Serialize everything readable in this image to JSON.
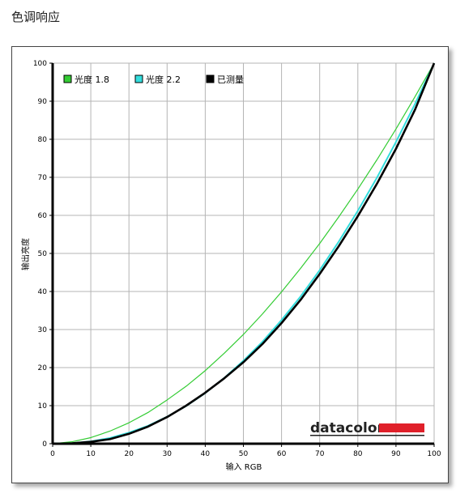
{
  "page": {
    "heading": "色调响应"
  },
  "chart_data": {
    "type": "line",
    "title": "",
    "xlabel": "输入 RGB",
    "ylabel": "输出亮度",
    "xlim": [
      0,
      100
    ],
    "ylim": [
      0,
      100
    ],
    "xticks": [
      "0",
      "10",
      "20",
      "30",
      "40",
      "50",
      "60",
      "70",
      "80",
      "90",
      "100"
    ],
    "yticks": [
      "0",
      "10",
      "20",
      "30",
      "40",
      "50",
      "60",
      "70",
      "80",
      "90",
      "100"
    ],
    "grid": true,
    "legend_position": "top-left",
    "x": [
      0,
      5,
      10,
      15,
      20,
      25,
      30,
      35,
      40,
      45,
      50,
      55,
      60,
      65,
      70,
      75,
      80,
      85,
      90,
      95,
      100
    ],
    "series": [
      {
        "name": "光度 1.8",
        "color": "#33cc33",
        "values": [
          0,
          0.5,
          1.6,
          3.3,
          5.5,
          8.2,
          11.5,
          15.1,
          19.2,
          23.8,
          28.7,
          34.1,
          39.9,
          46.1,
          52.6,
          59.6,
          66.9,
          74.6,
          82.7,
          91.2,
          100
        ]
      },
      {
        "name": "光度 2.2",
        "color": "#33dddd",
        "values": [
          0,
          0.1,
          0.6,
          1.5,
          2.9,
          4.7,
          7.1,
          9.9,
          13.3,
          17.3,
          21.8,
          26.8,
          32.5,
          38.7,
          45.6,
          53.1,
          61.2,
          69.9,
          79.3,
          89.3,
          100
        ]
      },
      {
        "name": "已测量",
        "color": "#000000",
        "values": [
          0,
          0.1,
          0.5,
          1.2,
          2.6,
          4.5,
          7.0,
          10.0,
          13.4,
          17.2,
          21.4,
          26.2,
          31.7,
          37.8,
          44.6,
          51.9,
          59.8,
          68.3,
          77.5,
          87.8,
          100
        ]
      }
    ],
    "logo": "datacolor",
    "colors": {
      "logo_bar": "#e0202a",
      "grid": "#b4b4b4"
    }
  }
}
